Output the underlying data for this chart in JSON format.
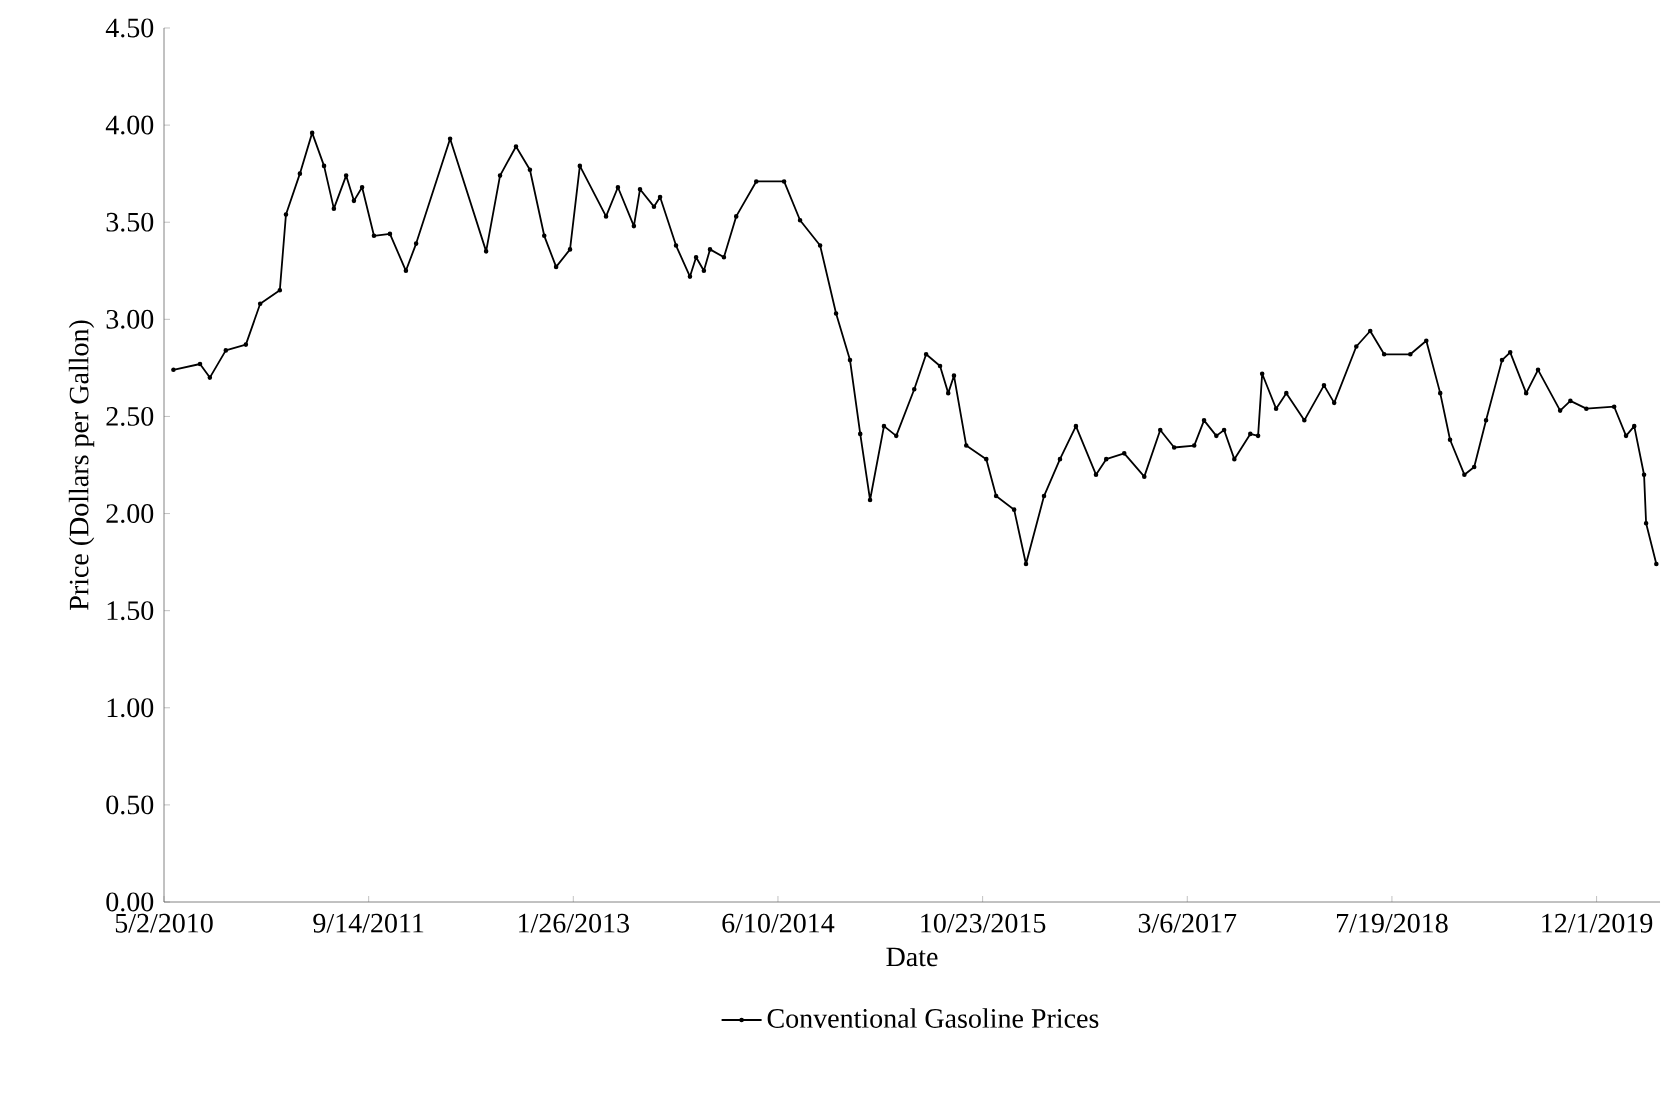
{
  "chart_data": {
    "type": "line",
    "xlabel": "Date",
    "ylabel": "Price (Dollars per Gallon)",
    "x": [
      "2010-05-25",
      "2010-07-29",
      "2010-08-22",
      "2010-09-30",
      "2010-11-18",
      "2010-12-23",
      "2011-02-09",
      "2011-02-24",
      "2011-03-30",
      "2011-04-29",
      "2011-05-28",
      "2011-06-21",
      "2011-07-21",
      "2011-08-09",
      "2011-08-29",
      "2011-09-27",
      "2011-11-05",
      "2011-12-14",
      "2012-01-08",
      "2012-03-31",
      "2012-06-27",
      "2012-07-31",
      "2012-09-08",
      "2012-10-12",
      "2012-11-16",
      "2012-12-15",
      "2013-01-18",
      "2013-02-11",
      "2013-04-16",
      "2013-05-15",
      "2013-06-23",
      "2013-07-08",
      "2013-08-11",
      "2013-08-26",
      "2013-10-04",
      "2013-11-07",
      "2013-11-22",
      "2013-12-11",
      "2013-12-26",
      "2014-01-29",
      "2014-02-28",
      "2014-04-18",
      "2014-06-25",
      "2014-08-03",
      "2014-09-21",
      "2014-10-30",
      "2014-12-03",
      "2014-12-28",
      "2015-01-21",
      "2015-02-24",
      "2015-03-26",
      "2015-05-09",
      "2015-06-07",
      "2015-07-11",
      "2015-07-31",
      "2015-08-14",
      "2015-09-13",
      "2015-11-01",
      "2015-11-25",
      "2016-01-08",
      "2016-02-06",
      "2016-03-21",
      "2016-04-29",
      "2016-06-07",
      "2016-07-26",
      "2016-08-20",
      "2016-10-03",
      "2016-11-21",
      "2016-12-30",
      "2017-02-02",
      "2017-03-23",
      "2017-04-16",
      "2017-05-16",
      "2017-06-04",
      "2017-06-29",
      "2017-08-07",
      "2017-08-26",
      "2017-09-05",
      "2017-10-09",
      "2017-11-03",
      "2017-12-17",
      "2018-02-03",
      "2018-02-28",
      "2018-04-23",
      "2018-05-27",
      "2018-06-30",
      "2018-09-02",
      "2018-10-11",
      "2018-11-14",
      "2018-12-08",
      "2019-01-12",
      "2019-02-05",
      "2019-03-06",
      "2019-04-14",
      "2019-05-04",
      "2019-06-12",
      "2019-07-11",
      "2019-09-03",
      "2019-09-28",
      "2019-11-06",
      "2020-01-13",
      "2020-02-11",
      "2020-03-02",
      "2020-03-26",
      "2020-03-31",
      "2020-04-25"
    ],
    "series": [
      {
        "name": "Conventional Gasoline Prices",
        "color": "#000000",
        "values": [
          2.74,
          2.77,
          2.7,
          2.84,
          2.87,
          3.08,
          3.15,
          3.54,
          3.75,
          3.96,
          3.79,
          3.57,
          3.74,
          3.61,
          3.68,
          3.43,
          3.44,
          3.25,
          3.39,
          3.93,
          3.35,
          3.74,
          3.89,
          3.77,
          3.43,
          3.27,
          3.36,
          3.79,
          3.53,
          3.68,
          3.48,
          3.67,
          3.58,
          3.63,
          3.38,
          3.22,
          3.32,
          3.25,
          3.36,
          3.32,
          3.53,
          3.71,
          3.71,
          3.51,
          3.38,
          3.03,
          2.79,
          2.41,
          2.07,
          2.45,
          2.4,
          2.64,
          2.82,
          2.76,
          2.62,
          2.71,
          2.35,
          2.28,
          2.09,
          2.02,
          1.74,
          2.09,
          2.28,
          2.45,
          2.2,
          2.28,
          2.31,
          2.19,
          2.43,
          2.34,
          2.35,
          2.48,
          2.4,
          2.43,
          2.28,
          2.41,
          2.4,
          2.72,
          2.54,
          2.62,
          2.48,
          2.66,
          2.57,
          2.86,
          2.94,
          2.82,
          2.82,
          2.89,
          2.62,
          2.38,
          2.2,
          2.24,
          2.48,
          2.79,
          2.83,
          2.62,
          2.74,
          2.53,
          2.58,
          2.54,
          2.55,
          2.4,
          2.45,
          2.2,
          1.95,
          1.74
        ]
      }
    ],
    "xlim": [
      "2010-05-02",
      "2020-05-04"
    ],
    "ylim": [
      0,
      4.5
    ],
    "xticks": [
      {
        "value": "2010-05-02",
        "label": "5/2/2010"
      },
      {
        "value": "2011-09-14",
        "label": "9/14/2011"
      },
      {
        "value": "2013-01-26",
        "label": "1/26/2013"
      },
      {
        "value": "2014-06-10",
        "label": "6/10/2014"
      },
      {
        "value": "2015-10-23",
        "label": "10/23/2015"
      },
      {
        "value": "2017-03-06",
        "label": "3/6/2017"
      },
      {
        "value": "2018-07-19",
        "label": "7/19/2018"
      },
      {
        "value": "2019-12-01",
        "label": "12/1/2019"
      }
    ],
    "yticks": [
      {
        "value": 0,
        "label": "0.00"
      },
      {
        "value": 0.5,
        "label": "0.50"
      },
      {
        "value": 1,
        "label": "1.00"
      },
      {
        "value": 1.5,
        "label": "1.50"
      },
      {
        "value": 2,
        "label": "2.00"
      },
      {
        "value": 2.5,
        "label": "2.50"
      },
      {
        "value": 3,
        "label": "3.00"
      },
      {
        "value": 3.5,
        "label": "3.50"
      },
      {
        "value": 4,
        "label": "4.00"
      },
      {
        "value": 4.5,
        "label": "4.50"
      }
    ],
    "legend": "bottom",
    "marker": "circle",
    "line_style": "solid"
  }
}
